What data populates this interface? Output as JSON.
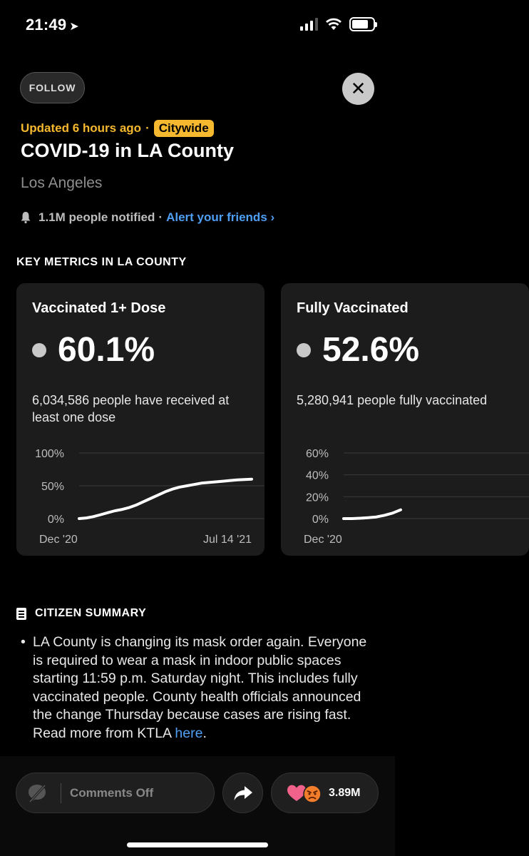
{
  "status_bar": {
    "time": "21:49",
    "location_glyph": "➤"
  },
  "header": {
    "follow_label": "FOLLOW",
    "close_glyph": "✕",
    "updated": "Updated 6 hours ago",
    "separator": "·",
    "scope_badge": "Citywide",
    "title": "COVID-19 in LA County",
    "location": "Los Angeles",
    "notified": "1.1M people notified",
    "alert_link": "Alert your friends ›"
  },
  "metrics": {
    "section_title": "KEY METRICS IN LA COUNTY",
    "cards": [
      {
        "title": "Vaccinated 1+ Dose",
        "value": "60.1%",
        "description": "6,034,586 people have received at least one dose",
        "chart_data": {
          "type": "line",
          "y_ticks": [
            "100%",
            "50%",
            "0%"
          ],
          "ylim": [
            0,
            100
          ],
          "x_labels": [
            "Dec '20",
            "Jul 14 '21"
          ],
          "values": [
            0,
            1,
            3,
            6,
            9,
            12,
            14,
            17,
            21,
            26,
            31,
            36,
            41,
            45,
            48,
            50,
            52,
            54,
            55,
            56,
            57,
            58,
            59,
            59.5,
            60.1
          ]
        }
      },
      {
        "title": "Fully Vaccinated",
        "value": "52.6%",
        "description": "5,280,941 people fully vaccinated",
        "chart_data": {
          "type": "line",
          "y_ticks": [
            "60%",
            "40%",
            "20%",
            "0%"
          ],
          "ylim": [
            0,
            60
          ],
          "x_labels": [
            "Dec '20"
          ],
          "values": [
            0,
            0,
            0.3,
            0.8,
            1.5,
            3,
            5,
            8
          ]
        }
      }
    ]
  },
  "summary": {
    "title": "CITIZEN SUMMARY",
    "bullet": "•",
    "text": "LA County is changing its mask order again. Everyone is required to wear a mask in indoor public spaces starting 11:59 p.m. Saturday night. This includes fully vaccinated people. County health officials announced the change Thursday because cases are rising fast. Read more from KTLA ",
    "link": "here",
    "end": "."
  },
  "bottom_bar": {
    "comments_label": "Comments Off",
    "reaction_count": "3.89M"
  },
  "colors": {
    "accent_yellow": "#f5b82e",
    "link_blue": "#4f9ff5",
    "card_bg": "#1c1c1c"
  }
}
